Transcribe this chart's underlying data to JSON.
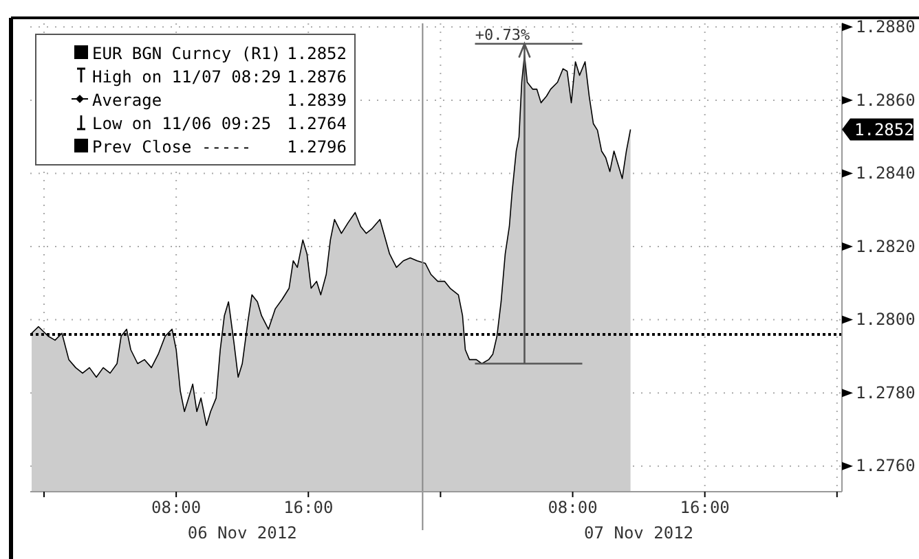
{
  "chart_data": {
    "type": "area",
    "x": [
      "2012-11-05T23:15",
      "2012-11-05T23:40",
      "2012-11-06T00:15",
      "2012-11-06T00:40",
      "2012-11-06T01:05",
      "2012-11-06T01:30",
      "2012-11-06T01:55",
      "2012-11-06T02:20",
      "2012-11-06T02:45",
      "2012-11-06T03:10",
      "2012-11-06T03:35",
      "2012-11-06T04:00",
      "2012-11-06T04:25",
      "2012-11-06T04:40",
      "2012-11-06T05:00",
      "2012-11-06T05:15",
      "2012-11-06T05:40",
      "2012-11-06T06:05",
      "2012-11-06T06:30",
      "2012-11-06T06:55",
      "2012-11-06T07:20",
      "2012-11-06T07:45",
      "2012-11-06T08:00",
      "2012-11-06T08:15",
      "2012-11-06T08:30",
      "2012-11-06T08:45",
      "2012-11-06T09:00",
      "2012-11-06T09:15",
      "2012-11-06T09:30",
      "2012-11-06T09:50",
      "2012-11-06T10:05",
      "2012-11-06T10:25",
      "2012-11-06T10:40",
      "2012-11-06T10:55",
      "2012-11-06T11:10",
      "2012-11-06T11:30",
      "2012-11-06T11:45",
      "2012-11-06T12:00",
      "2012-11-06T12:20",
      "2012-11-06T12:35",
      "2012-11-06T12:55",
      "2012-11-06T13:10",
      "2012-11-06T13:35",
      "2012-11-06T14:00",
      "2012-11-06T14:25",
      "2012-11-06T14:50",
      "2012-11-06T15:05",
      "2012-11-06T15:20",
      "2012-11-06T15:40",
      "2012-11-06T15:55",
      "2012-11-06T16:10",
      "2012-11-06T16:30",
      "2012-11-06T16:45",
      "2012-11-06T17:05",
      "2012-11-06T17:20",
      "2012-11-06T17:35",
      "2012-11-06T18:00",
      "2012-11-06T18:25",
      "2012-11-06T18:50",
      "2012-11-06T19:10",
      "2012-11-06T19:30",
      "2012-11-06T19:50",
      "2012-11-06T20:20",
      "2012-11-06T20:55",
      "2012-11-06T21:20",
      "2012-11-06T21:45",
      "2012-11-06T22:10",
      "2012-11-06T22:35",
      "2012-11-06T23:05",
      "2012-11-06T23:25",
      "2012-11-06T23:50",
      "2012-11-07T00:15",
      "2012-11-07T00:35",
      "2012-11-07T01:05",
      "2012-11-07T01:20",
      "2012-11-07T01:30",
      "2012-11-07T01:45",
      "2012-11-07T02:10",
      "2012-11-07T02:30",
      "2012-11-07T02:55",
      "2012-11-07T03:10",
      "2012-11-07T03:25",
      "2012-11-07T03:40",
      "2012-11-07T03:55",
      "2012-11-07T04:10",
      "2012-11-07T04:20",
      "2012-11-07T04:35",
      "2012-11-07T04:45",
      "2012-11-07T04:55",
      "2012-11-07T05:05",
      "2012-11-07T05:15",
      "2012-11-07T05:35",
      "2012-11-07T05:50",
      "2012-11-07T06:05",
      "2012-11-07T06:25",
      "2012-11-07T06:40",
      "2012-11-07T07:05",
      "2012-11-07T07:25",
      "2012-11-07T07:40",
      "2012-11-07T07:55",
      "2012-11-07T08:10",
      "2012-11-07T08:25",
      "2012-11-07T08:45",
      "2012-11-07T09:00",
      "2012-11-07T09:15",
      "2012-11-07T09:30",
      "2012-11-07T09:45",
      "2012-11-07T10:00",
      "2012-11-07T10:15",
      "2012-11-07T10:30",
      "2012-11-07T10:45",
      "2012-11-07T11:00",
      "2012-11-07T11:15",
      "2012-11-07T11:30"
    ],
    "series": [
      {
        "name": "EUR BGN Curncy (R1)",
        "color": "#000000",
        "values": [
          1.27963,
          1.27981,
          1.27955,
          1.27944,
          1.27963,
          1.27891,
          1.27869,
          1.27854,
          1.27869,
          1.27843,
          1.27869,
          1.27854,
          1.2788,
          1.27955,
          1.27974,
          1.27918,
          1.2788,
          1.27891,
          1.27869,
          1.27906,
          1.27955,
          1.27974,
          1.27918,
          1.27805,
          1.27749,
          1.27786,
          1.27824,
          1.27749,
          1.27786,
          1.27711,
          1.27749,
          1.27786,
          1.27918,
          1.28011,
          1.28049,
          1.27936,
          1.27843,
          1.2788,
          1.27993,
          1.28068,
          1.28049,
          1.28011,
          1.27974,
          1.2803,
          1.28056,
          1.28086,
          1.28161,
          1.28143,
          1.28218,
          1.2818,
          1.28086,
          1.28105,
          1.28068,
          1.28124,
          1.28218,
          1.28274,
          1.28236,
          1.28266,
          1.28293,
          1.28255,
          1.28236,
          1.28248,
          1.28274,
          1.2818,
          1.28143,
          1.28161,
          1.28169,
          1.28161,
          1.28154,
          1.28124,
          1.28105,
          1.28105,
          1.28086,
          1.28068,
          1.28011,
          1.27918,
          1.27891,
          1.27891,
          1.2788,
          1.27891,
          1.27906,
          1.27955,
          1.28049,
          1.2818,
          1.28255,
          1.28349,
          1.28461,
          1.28499,
          1.28649,
          1.28724,
          1.28649,
          1.2863,
          1.2863,
          1.28593,
          1.28611,
          1.2863,
          1.28649,
          1.28686,
          1.28679,
          1.28593,
          1.28705,
          1.28668,
          1.28705,
          1.28611,
          1.28536,
          1.28518,
          1.28461,
          1.28443,
          1.28405,
          1.28461,
          1.28424,
          1.28386,
          1.28461,
          1.2852
        ]
      }
    ],
    "xlim": [
      "2012-11-05T23:10",
      "2012-11-08T00:18"
    ],
    "xticks": [
      {
        "value": "2012-11-06T00:00",
        "label": null
      },
      {
        "value": "2012-11-06T08:00",
        "label": "08:00"
      },
      {
        "value": "2012-11-06T16:00",
        "label": "16:00"
      },
      {
        "value": "2012-11-07T00:00",
        "label": null
      },
      {
        "value": "2012-11-07T08:00",
        "label": "08:00"
      },
      {
        "value": "2012-11-07T16:00",
        "label": "16:00"
      },
      {
        "value": "2012-11-08T00:00",
        "label": null
      }
    ],
    "ylim": [
      1.2753,
      1.2881
    ],
    "yticks": [
      {
        "value": 1.276,
        "label": "1.2760"
      },
      {
        "value": 1.278,
        "label": "1.2780"
      },
      {
        "value": 1.28,
        "label": "1.2800"
      },
      {
        "value": 1.282,
        "label": "1.2820"
      },
      {
        "value": 1.284,
        "label": "1.2840"
      },
      {
        "value": 1.286,
        "label": "1.2860"
      },
      {
        "value": 1.288,
        "label": "1.2880"
      }
    ],
    "grid": true,
    "legend": "top left",
    "ref_lines": [
      {
        "axis": "y",
        "value": 1.2796,
        "label": "Prev Close -----",
        "color": "#000000",
        "line_style": "dotted"
      },
      {
        "axis": "x",
        "value": "2012-11-06T22:55",
        "color": "#888888"
      }
    ],
    "annotations": [
      "+0.73%",
      "06 Nov 2012",
      "07 Nov 2012",
      "1.2852",
      "High on 11/07 08:29",
      "1.2876",
      "Average",
      "1.2839",
      "Low on 11/06 09:25",
      "1.2764",
      "1.2796",
      "1.2852"
    ]
  }
}
